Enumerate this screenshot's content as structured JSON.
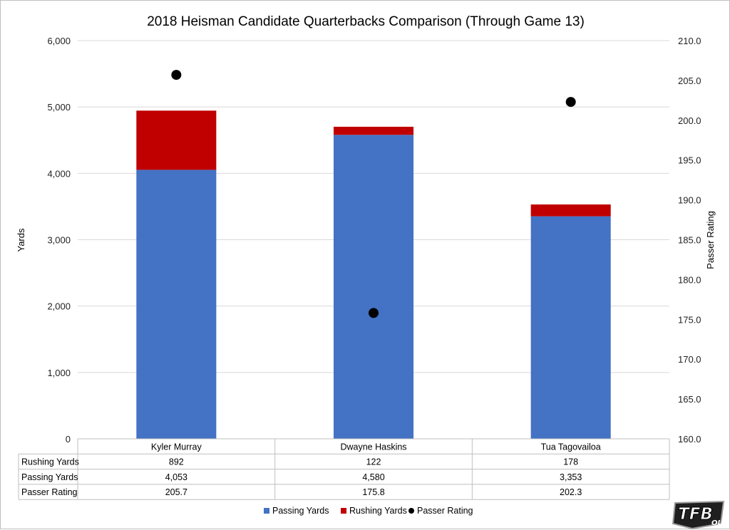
{
  "chart_data": {
    "type": "bar",
    "stacked": true,
    "title": "2018 Heisman Candidate Quarterbacks Comparison (Through Game 13)",
    "categories": [
      "Kyler Murray",
      "Dwayne Haskins",
      "Tua Tagovailoa"
    ],
    "series": [
      {
        "name": "Passing Yards",
        "values": [
          4053,
          4580,
          3353
        ],
        "color": "#4472c4",
        "axis": "primary",
        "kind": "bar"
      },
      {
        "name": "Rushing Yards",
        "values": [
          892,
          122,
          178
        ],
        "color": "#c00000",
        "axis": "primary",
        "kind": "bar"
      },
      {
        "name": "Passer Rating",
        "values": [
          205.7,
          175.8,
          202.3
        ],
        "color": "#000000",
        "axis": "secondary",
        "kind": "scatter"
      }
    ],
    "ylabel": "Yards",
    "y2label": "Passer Rating",
    "xlabel": "",
    "ylim": [
      0,
      6000
    ],
    "y2lim": [
      160,
      210
    ],
    "yticks": [
      "0",
      "1,000",
      "2,000",
      "3,000",
      "4,000",
      "5,000",
      "6,000"
    ],
    "y2ticks": [
      "160.0",
      "165.0",
      "170.0",
      "175.0",
      "180.0",
      "185.0",
      "190.0",
      "195.0",
      "200.0",
      "205.0",
      "210.0"
    ],
    "grid": true,
    "legend_position": "bottom",
    "data_table": {
      "rows": [
        {
          "label": "Rushing Yards",
          "cells": [
            "892",
            "122",
            "178"
          ]
        },
        {
          "label": "Passing Yards",
          "cells": [
            "4,053",
            "4,580",
            "3,353"
          ]
        },
        {
          "label": "Passer Rating",
          "cells": [
            "205.7",
            "175.8",
            "202.3"
          ]
        }
      ]
    }
  },
  "legend": [
    {
      "label": "Passing Yards",
      "marker": "square",
      "color": "#4472c4"
    },
    {
      "label": "Rushing Yards",
      "marker": "square",
      "color": "#c00000"
    },
    {
      "label": "Passer Rating",
      "marker": "circle",
      "color": "#000000"
    }
  ],
  "logo": {
    "text": "TFB",
    "subtext": "OU"
  }
}
